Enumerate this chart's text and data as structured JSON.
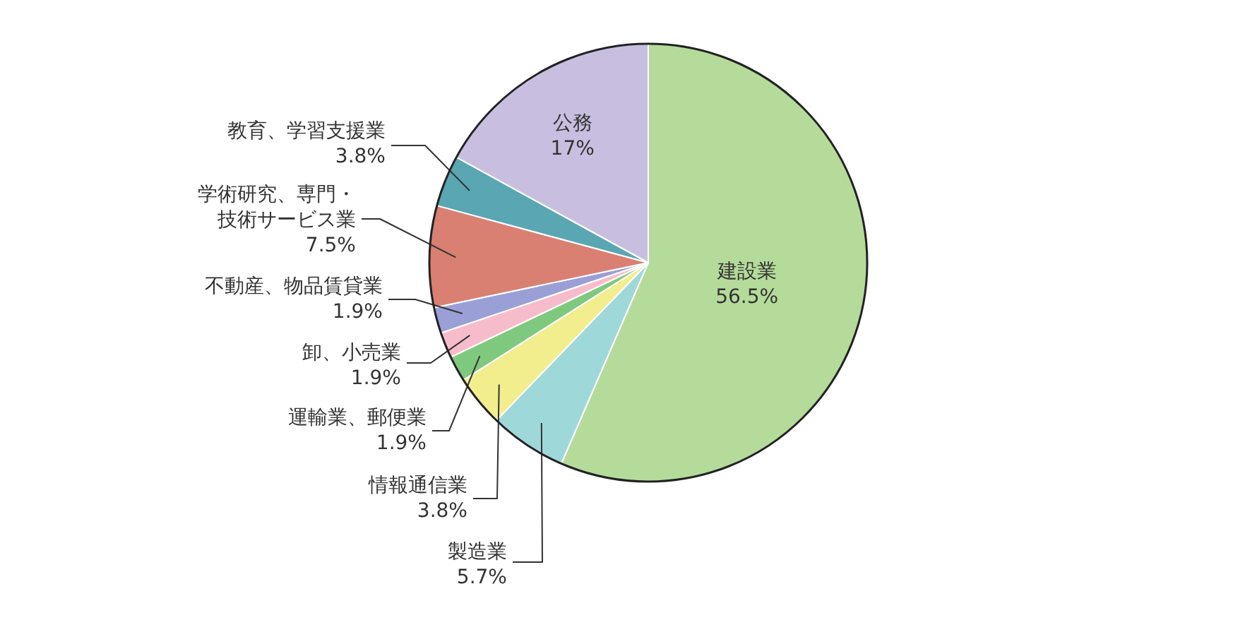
{
  "chart_data": {
    "type": "pie",
    "categories": [
      "建設業",
      "製造業",
      "情報通信業",
      "運輸業、郵便業",
      "卸、小売業",
      "不動産、物品賃貸業",
      "学術研究、専門・技術サービス業",
      "教育、学習支援業",
      "公務"
    ],
    "values": [
      56.5,
      5.7,
      3.8,
      1.9,
      1.9,
      1.9,
      7.5,
      3.8,
      17
    ],
    "value_labels": [
      "56.5%",
      "5.7%",
      "3.8%",
      "1.9%",
      "1.9%",
      "1.9%",
      "7.5%",
      "3.8%",
      "17%"
    ],
    "colors": [
      "#b5db9a",
      "#9fd8d8",
      "#f2ee8e",
      "#7fc97f",
      "#f7bccc",
      "#9a9fd6",
      "#d98072",
      "#5aa6b3",
      "#c8bfe0"
    ],
    "legend": false
  }
}
